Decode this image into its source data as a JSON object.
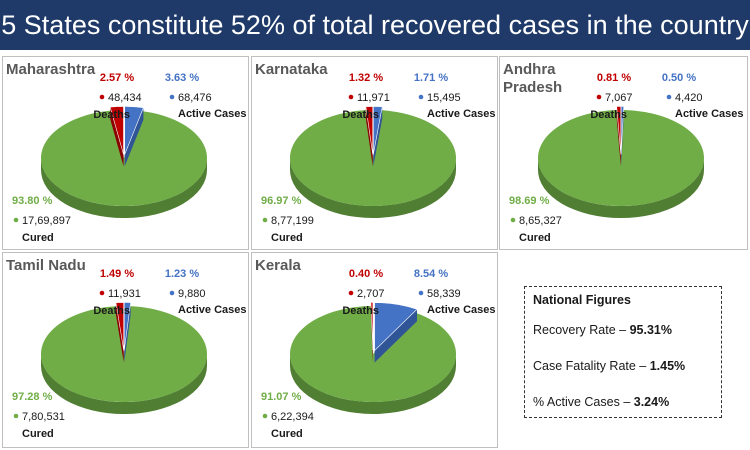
{
  "title": "5 States constitute 52% of total recovered cases in the country",
  "colors": {
    "banner": "#1f3a68",
    "cured": "#70ad47",
    "cured_dark": "#507e32",
    "deaths": "#c00000",
    "deaths_dark": "#8a0000",
    "active": "#4472c4",
    "active_dark": "#2f5597",
    "cured_label": "#70ad47",
    "deaths_label": "#c00000",
    "active_label": "#4472c4"
  },
  "chart_data": [
    {
      "type": "pie",
      "title": "Maharashtra",
      "categories": [
        "Cured",
        "Deaths",
        "Active Cases"
      ],
      "percentages": [
        "93.80 %",
        "2.57 %",
        "3.63 %"
      ],
      "values": [
        1769897,
        48434,
        68476
      ],
      "value_labels": [
        "17,69,897",
        "48,434",
        "68,476"
      ]
    },
    {
      "type": "pie",
      "title": "Karnataka",
      "categories": [
        "Cured",
        "Deaths",
        "Active Cases"
      ],
      "percentages": [
        "96.97 %",
        "1.32 %",
        "1.71 %"
      ],
      "values": [
        877199,
        11971,
        15495
      ],
      "value_labels": [
        "8,77,199",
        "11,971",
        "15,495"
      ]
    },
    {
      "type": "pie",
      "title": "Andhra Pradesh",
      "title_lines": [
        "Andhra",
        "Pradesh"
      ],
      "categories": [
        "Cured",
        "Deaths",
        "Active Cases"
      ],
      "percentages": [
        "98.69 %",
        "0.81 %",
        "0.50 %"
      ],
      "values": [
        865327,
        7067,
        4420
      ],
      "value_labels": [
        "8,65,327",
        "7,067",
        "4,420"
      ]
    },
    {
      "type": "pie",
      "title": "Tamil Nadu",
      "categories": [
        "Cured",
        "Deaths",
        "Active Cases"
      ],
      "percentages": [
        "97.28 %",
        "1.49 %",
        "1.23 %"
      ],
      "values": [
        780531,
        11931,
        9880
      ],
      "value_labels": [
        "7,80,531",
        "11,931",
        "9,880"
      ]
    },
    {
      "type": "pie",
      "title": "Kerala",
      "categories": [
        "Cured",
        "Deaths",
        "Active Cases"
      ],
      "percentages": [
        "91.07 %",
        "0.40 %",
        "8.54 %"
      ],
      "values": [
        622394,
        2707,
        58339
      ],
      "value_labels": [
        "6,22,394",
        "2,707",
        "58,339"
      ]
    }
  ],
  "national": {
    "heading": "National Figures",
    "recovery_label": "Recovery Rate – ",
    "recovery_value": "95.31%",
    "fatality_label": "Case Fatality Rate – ",
    "fatality_value": "1.45%",
    "active_label": "% Active Cases – ",
    "active_value": "3.24%"
  }
}
